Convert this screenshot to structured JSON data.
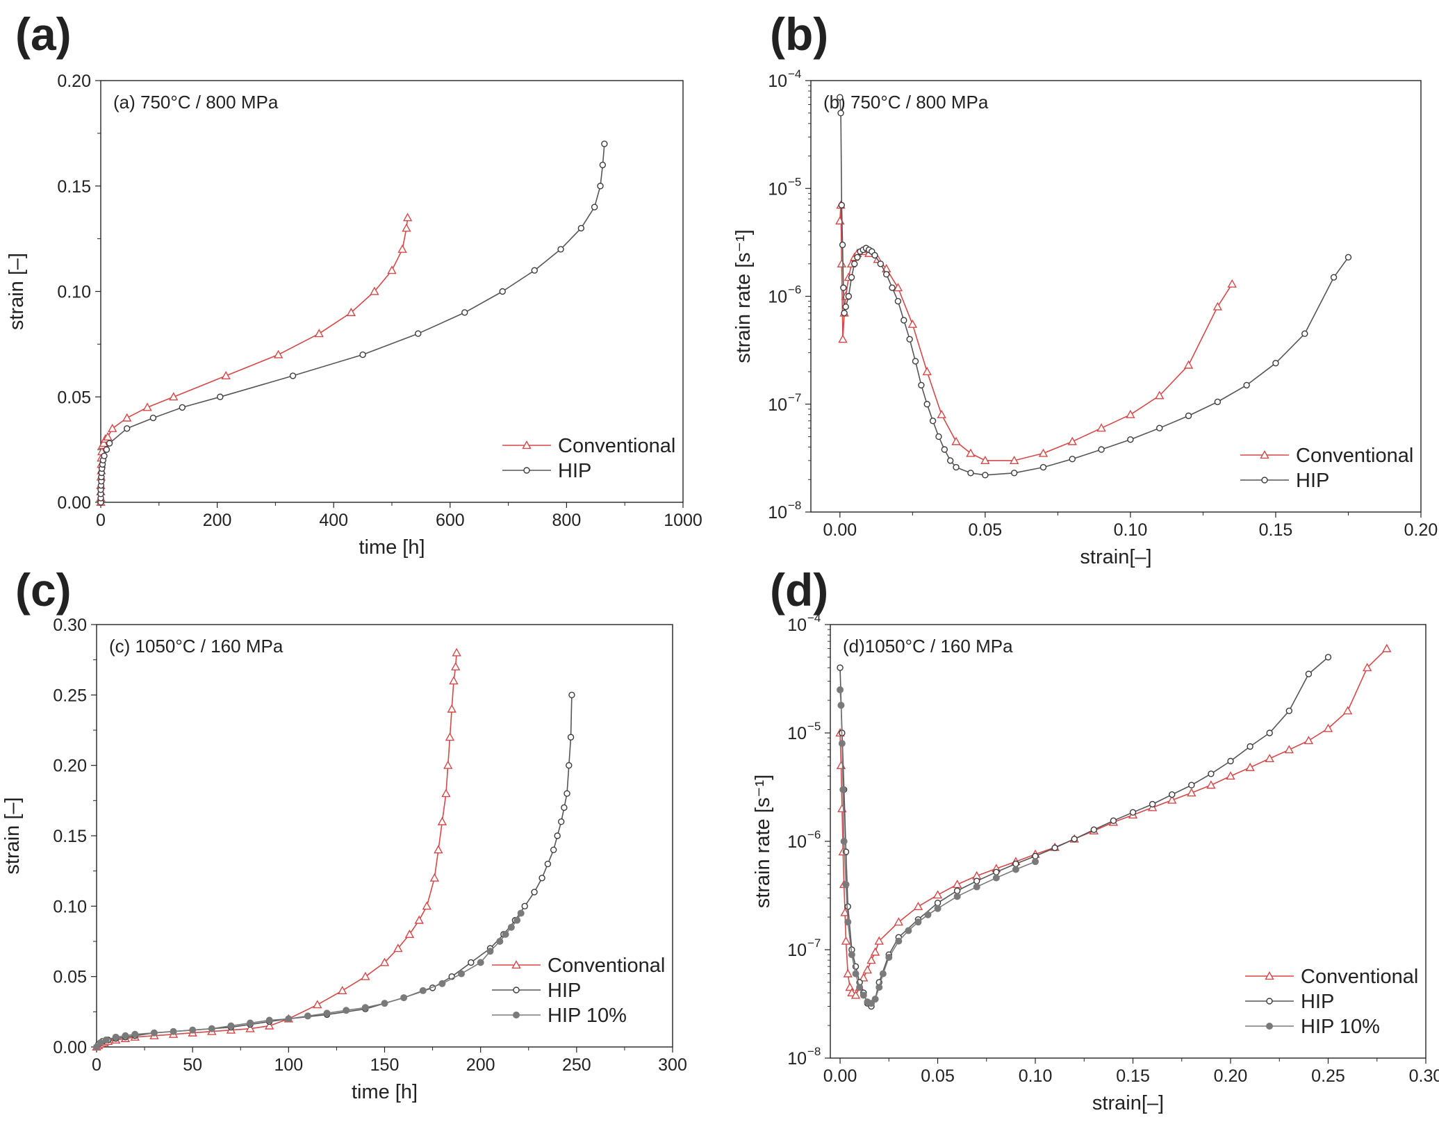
{
  "colors": {
    "conventional": "#d44848",
    "hip": "#3a3a3a",
    "hip10": "#7a7a7a",
    "hipline": "#555555"
  },
  "chart_data": [
    {
      "id": "a",
      "type": "line",
      "panel_letter": "(a)",
      "title": "(a)  750°C / 800 MPa",
      "xlabel": "time [h]",
      "ylabel": "strain [–]",
      "xlim": [
        0,
        1000
      ],
      "ylim": [
        0,
        0.2
      ],
      "yscale": "linear",
      "xticks": [
        0,
        200,
        400,
        600,
        800,
        1000
      ],
      "xtick_labels": [
        "0",
        "200",
        "400",
        "600",
        "800",
        "1000"
      ],
      "yticks": [
        0,
        0.05,
        0.1,
        0.15,
        0.2
      ],
      "ytick_labels": [
        "0.00",
        "0.05",
        "0.10",
        "0.15",
        "0.20"
      ],
      "legend": "bottom-right",
      "series": [
        {
          "name": "Conventional",
          "marker": "triangle",
          "color_key": "conventional",
          "x": [
            0,
            0,
            0,
            0,
            0.5,
            1,
            1,
            1,
            2,
            3,
            5,
            8,
            12,
            20,
            45,
            80,
            125,
            215,
            305,
            375,
            430,
            470,
            500,
            518,
            525,
            527
          ],
          "y": [
            0,
            0.002,
            0.005,
            0.008,
            0.012,
            0.015,
            0.018,
            0.021,
            0.024,
            0.027,
            0.028,
            0.03,
            0.031,
            0.035,
            0.04,
            0.045,
            0.05,
            0.06,
            0.07,
            0.08,
            0.09,
            0.1,
            0.11,
            0.12,
            0.13,
            0.135
          ]
        },
        {
          "name": "HIP",
          "marker": "circle",
          "color_key": "hip",
          "x": [
            0,
            0,
            0,
            0,
            0.5,
            1,
            1,
            1.5,
            2,
            3,
            4,
            6,
            10,
            15,
            45,
            90,
            140,
            205,
            330,
            450,
            545,
            625,
            690,
            745,
            790,
            825,
            848,
            858,
            862,
            865
          ],
          "y": [
            0,
            0.002,
            0.004,
            0.006,
            0.008,
            0.01,
            0.012,
            0.014,
            0.016,
            0.018,
            0.02,
            0.022,
            0.025,
            0.028,
            0.035,
            0.04,
            0.045,
            0.05,
            0.06,
            0.07,
            0.08,
            0.09,
            0.1,
            0.11,
            0.12,
            0.13,
            0.14,
            0.15,
            0.16,
            0.17
          ]
        }
      ]
    },
    {
      "id": "b",
      "type": "line",
      "panel_letter": "(b)",
      "title": "(b)  750°C / 800 MPa",
      "xlabel": "strain[–]",
      "ylabel": "strain rate [s⁻¹]",
      "xlim": [
        -0.01,
        0.2
      ],
      "ylim": [
        1e-08,
        0.0001
      ],
      "yscale": "log",
      "xticks": [
        0,
        0.05,
        0.1,
        0.15,
        0.2
      ],
      "xtick_labels": [
        "0.00",
        "0.05",
        "0.10",
        "0.15",
        "0.20"
      ],
      "yticks": [
        1e-08,
        1e-07,
        1e-06,
        1e-05,
        0.0001
      ],
      "ytick_base": [
        "10",
        "10",
        "10",
        "10",
        "10"
      ],
      "ytick_exp": [
        "−8",
        "−7",
        "−6",
        "−5",
        "−4"
      ],
      "legend": "bottom-right",
      "series": [
        {
          "name": "Conventional",
          "marker": "triangle",
          "color_key": "conventional",
          "x": [
            0,
            0.0003,
            0.0006,
            0.001,
            0.0015,
            0.002,
            0.003,
            0.004,
            0.005,
            0.006,
            0.008,
            0.01,
            0.013,
            0.016,
            0.02,
            0.025,
            0.03,
            0.035,
            0.04,
            0.045,
            0.05,
            0.06,
            0.07,
            0.08,
            0.09,
            0.1,
            0.11,
            0.12,
            0.13,
            0.135
          ],
          "y": [
            5e-06,
            7e-06,
            2e-06,
            4e-07,
            7e-07,
            1e-06,
            1.5e-06,
            2e-06,
            2.3e-06,
            2.5e-06,
            2.6e-06,
            2.5e-06,
            2.2e-06,
            1.8e-06,
            1.2e-06,
            5.5e-07,
            2e-07,
            8e-08,
            4.5e-08,
            3.5e-08,
            3e-08,
            3e-08,
            3.5e-08,
            4.5e-08,
            6e-08,
            8e-08,
            1.2e-07,
            2.3e-07,
            8e-07,
            1.3e-06
          ]
        },
        {
          "name": "HIP",
          "marker": "circle",
          "color_key": "hip",
          "x": [
            0,
            0.0003,
            0.0006,
            0.0009,
            0.0012,
            0.0015,
            0.002,
            0.003,
            0.004,
            0.005,
            0.006,
            0.007,
            0.008,
            0.009,
            0.01,
            0.011,
            0.012,
            0.014,
            0.016,
            0.018,
            0.02,
            0.022,
            0.024,
            0.026,
            0.028,
            0.03,
            0.032,
            0.034,
            0.036,
            0.038,
            0.04,
            0.045,
            0.05,
            0.06,
            0.07,
            0.08,
            0.09,
            0.1,
            0.11,
            0.12,
            0.13,
            0.14,
            0.15,
            0.16,
            0.17,
            0.175
          ],
          "y": [
            7e-05,
            5e-05,
            7e-06,
            3e-06,
            1.2e-06,
            7e-07,
            8e-07,
            1e-06,
            1.5e-06,
            2e-06,
            2.3e-06,
            2.6e-06,
            2.7e-06,
            2.8e-06,
            2.7e-06,
            2.6e-06,
            2.4e-06,
            2e-06,
            1.6e-06,
            1.2e-06,
            9e-07,
            6e-07,
            4e-07,
            2.5e-07,
            1.5e-07,
            1e-07,
            7e-08,
            5e-08,
            3.8e-08,
            3e-08,
            2.6e-08,
            2.3e-08,
            2.2e-08,
            2.3e-08,
            2.6e-08,
            3.1e-08,
            3.8e-08,
            4.7e-08,
            6e-08,
            7.8e-08,
            1.05e-07,
            1.5e-07,
            2.4e-07,
            4.5e-07,
            1.5e-06,
            2.3e-06
          ]
        }
      ]
    },
    {
      "id": "c",
      "type": "line",
      "panel_letter": "(c)",
      "title": "(c)  1050°C / 160 MPa",
      "xlabel": "time [h]",
      "ylabel": "strain [–]",
      "xlim": [
        0,
        300
      ],
      "ylim": [
        0,
        0.3
      ],
      "yscale": "linear",
      "xticks": [
        0,
        50,
        100,
        150,
        200,
        250,
        300
      ],
      "xtick_labels": [
        "0",
        "50",
        "100",
        "150",
        "200",
        "250",
        "300"
      ],
      "yticks": [
        0,
        0.05,
        0.1,
        0.15,
        0.2,
        0.25,
        0.3
      ],
      "ytick_labels": [
        "0.00",
        "0.05",
        "0.10",
        "0.15",
        "0.20",
        "0.25",
        "0.30"
      ],
      "legend": "bottom-right",
      "series": [
        {
          "name": "Conventional",
          "marker": "triangle",
          "color_key": "conventional",
          "x": [
            0,
            1,
            2,
            4,
            6,
            10,
            15,
            20,
            30,
            40,
            50,
            60,
            70,
            80,
            90,
            100,
            115,
            128,
            140,
            150,
            157,
            163,
            168,
            172,
            176,
            178,
            180,
            182,
            183,
            184,
            185,
            186,
            187,
            187.5
          ],
          "y": [
            0,
            0.001,
            0.002,
            0.003,
            0.004,
            0.005,
            0.006,
            0.007,
            0.008,
            0.009,
            0.01,
            0.011,
            0.012,
            0.013,
            0.015,
            0.02,
            0.03,
            0.04,
            0.05,
            0.06,
            0.07,
            0.08,
            0.09,
            0.1,
            0.12,
            0.14,
            0.16,
            0.18,
            0.2,
            0.22,
            0.24,
            0.26,
            0.27,
            0.28
          ]
        },
        {
          "name": "HIP",
          "marker": "circle",
          "color_key": "hip",
          "x": [
            0,
            1,
            3,
            6,
            10,
            15,
            20,
            30,
            40,
            50,
            60,
            70,
            80,
            90,
            100,
            120,
            140,
            160,
            175,
            185,
            195,
            205,
            212,
            218,
            223,
            228,
            232,
            235,
            238,
            240,
            242,
            243.5,
            245,
            246,
            247,
            247.5
          ],
          "y": [
            0,
            0.002,
            0.004,
            0.005,
            0.006,
            0.007,
            0.008,
            0.01,
            0.011,
            0.012,
            0.013,
            0.014,
            0.016,
            0.018,
            0.02,
            0.023,
            0.027,
            0.035,
            0.042,
            0.05,
            0.06,
            0.07,
            0.08,
            0.09,
            0.1,
            0.11,
            0.12,
            0.13,
            0.14,
            0.15,
            0.16,
            0.17,
            0.18,
            0.2,
            0.22,
            0.25
          ]
        },
        {
          "name": "HIP 10%",
          "marker": "filled-circle",
          "color_key": "hip10",
          "x": [
            0,
            2,
            5,
            10,
            15,
            20,
            30,
            40,
            50,
            60,
            70,
            80,
            90,
            100,
            110,
            120,
            130,
            140,
            150,
            160,
            170,
            180,
            190,
            200,
            205,
            210,
            213,
            216,
            219,
            221
          ],
          "y": [
            0,
            0.003,
            0.005,
            0.007,
            0.008,
            0.009,
            0.01,
            0.011,
            0.012,
            0.013,
            0.015,
            0.017,
            0.019,
            0.02,
            0.022,
            0.024,
            0.026,
            0.028,
            0.031,
            0.035,
            0.04,
            0.045,
            0.052,
            0.06,
            0.068,
            0.075,
            0.08,
            0.085,
            0.09,
            0.095
          ]
        }
      ]
    },
    {
      "id": "d",
      "type": "line",
      "panel_letter": "(d)",
      "title": "(d)1050°C / 160 MPa",
      "xlabel": "strain[–]",
      "ylabel": "strain rate [s⁻¹]",
      "xlim": [
        -0.005,
        0.3
      ],
      "ylim": [
        1e-08,
        0.0001
      ],
      "yscale": "log",
      "xticks": [
        0,
        0.05,
        0.1,
        0.15,
        0.2,
        0.25,
        0.3
      ],
      "xtick_labels": [
        "0.00",
        "0.05",
        "0.10",
        "0.15",
        "0.20",
        "0.25",
        "0.30"
      ],
      "yticks": [
        1e-08,
        1e-07,
        1e-06,
        1e-05,
        0.0001
      ],
      "ytick_base": [
        "10",
        "10",
        "10",
        "10",
        "10"
      ],
      "ytick_exp": [
        "−8",
        "−7",
        "−6",
        "−5",
        "−4"
      ],
      "legend": "bottom-right",
      "series": [
        {
          "name": "Conventional",
          "marker": "triangle",
          "color_key": "conventional",
          "x": [
            0,
            0.0005,
            0.001,
            0.0015,
            0.002,
            0.0025,
            0.003,
            0.004,
            0.005,
            0.006,
            0.008,
            0.01,
            0.012,
            0.014,
            0.016,
            0.018,
            0.02,
            0.03,
            0.04,
            0.05,
            0.06,
            0.07,
            0.08,
            0.09,
            0.1,
            0.11,
            0.12,
            0.13,
            0.14,
            0.15,
            0.16,
            0.17,
            0.18,
            0.19,
            0.2,
            0.21,
            0.22,
            0.23,
            0.24,
            0.25,
            0.26,
            0.27,
            0.28
          ],
          "y": [
            1e-05,
            5e-06,
            2e-06,
            8e-07,
            4e-07,
            2.2e-07,
            1.2e-07,
            6e-08,
            4.5e-08,
            4e-08,
            3.8e-08,
            4.5e-08,
            5.5e-08,
            6.5e-08,
            8e-08,
            9.5e-08,
            1.2e-07,
            1.8e-07,
            2.5e-07,
            3.2e-07,
            4e-07,
            4.8e-07,
            5.6e-07,
            6.5e-07,
            7.6e-07,
            8.8e-07,
            1.05e-06,
            1.25e-06,
            1.5e-06,
            1.75e-06,
            2.05e-06,
            2.4e-06,
            2.8e-06,
            3.3e-06,
            4e-06,
            4.8e-06,
            5.8e-06,
            7e-06,
            8.5e-06,
            1.1e-05,
            1.6e-05,
            4e-05,
            6e-05
          ]
        },
        {
          "name": "HIP",
          "marker": "circle",
          "color_key": "hip",
          "x": [
            0,
            0.001,
            0.002,
            0.003,
            0.004,
            0.006,
            0.008,
            0.01,
            0.012,
            0.014,
            0.016,
            0.018,
            0.02,
            0.025,
            0.03,
            0.04,
            0.05,
            0.06,
            0.07,
            0.08,
            0.09,
            0.1,
            0.11,
            0.12,
            0.13,
            0.14,
            0.15,
            0.16,
            0.17,
            0.18,
            0.19,
            0.2,
            0.21,
            0.22,
            0.23,
            0.24,
            0.25
          ],
          "y": [
            4e-05,
            1e-05,
            3e-06,
            8e-07,
            2.5e-07,
            1e-07,
            7e-08,
            5e-08,
            4e-08,
            3.2e-08,
            3e-08,
            3.5e-08,
            5e-08,
            9e-08,
            1.3e-07,
            1.9e-07,
            2.7e-07,
            3.5e-07,
            4.3e-07,
            5.2e-07,
            6.2e-07,
            7.3e-07,
            8.7e-07,
            1.05e-06,
            1.28e-06,
            1.55e-06,
            1.85e-06,
            2.2e-06,
            2.7e-06,
            3.3e-06,
            4.2e-06,
            5.5e-06,
            7.5e-06,
            1e-05,
            1.6e-05,
            3.5e-05,
            5e-05
          ]
        },
        {
          "name": "HIP 10%",
          "marker": "filled-circle",
          "color_key": "hip10",
          "x": [
            0,
            0.0005,
            0.001,
            0.0015,
            0.002,
            0.003,
            0.004,
            0.006,
            0.008,
            0.01,
            0.012,
            0.014,
            0.016,
            0.018,
            0.02,
            0.022,
            0.025,
            0.03,
            0.035,
            0.04,
            0.045,
            0.05,
            0.06,
            0.07,
            0.08,
            0.09,
            0.1
          ],
          "y": [
            2.5e-05,
            1.8e-05,
            8e-06,
            3e-06,
            1e-06,
            4e-07,
            1.8e-07,
            9e-08,
            6e-08,
            4.5e-08,
            3.8e-08,
            3.3e-08,
            3.2e-08,
            3.5e-08,
            4.5e-08,
            6e-08,
            8.5e-08,
            1.2e-07,
            1.5e-07,
            1.8e-07,
            2.1e-07,
            2.4e-07,
            3.1e-07,
            3.8e-07,
            4.6e-07,
            5.5e-07,
            6.5e-07
          ]
        }
      ]
    }
  ]
}
